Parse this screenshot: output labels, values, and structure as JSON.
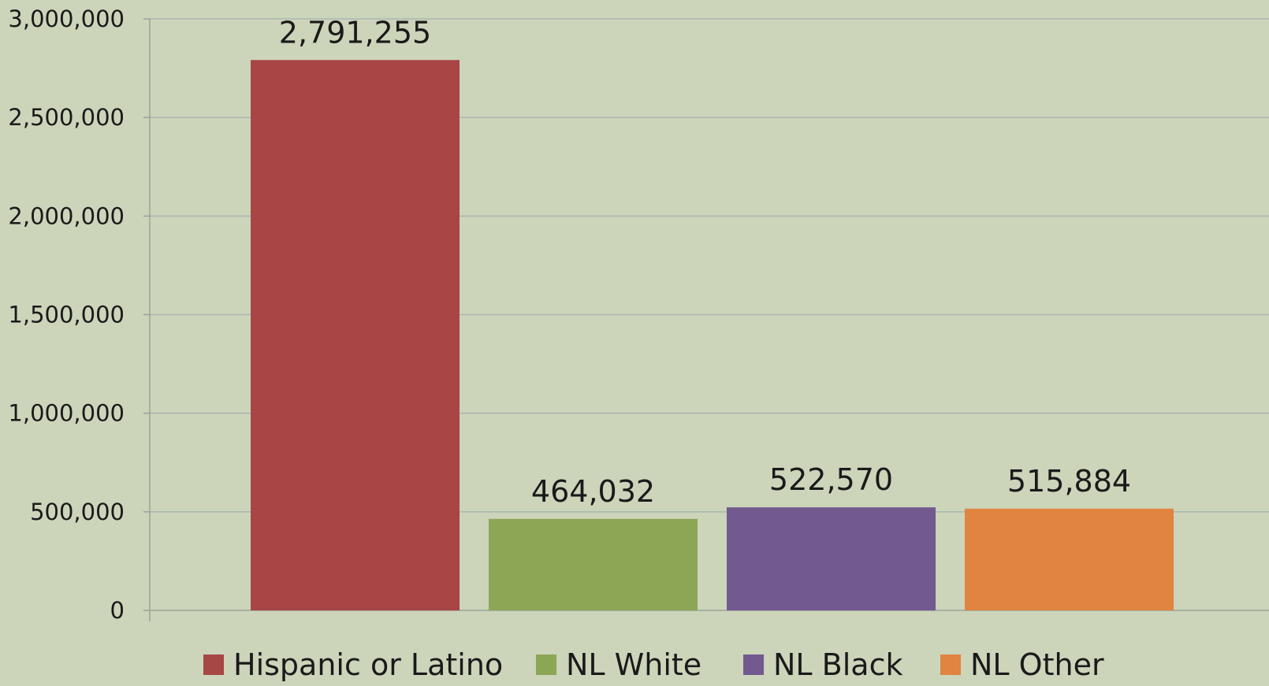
{
  "chart_data": {
    "type": "bar",
    "title": "",
    "xlabel": "",
    "ylabel": "",
    "ylim": [
      0,
      3000000
    ],
    "grid": true,
    "legend_position": "bottom",
    "yticks": [
      0,
      500000,
      1000000,
      1500000,
      2000000,
      2500000,
      3000000
    ],
    "ytick_labels": [
      "0",
      "500,000",
      "1,000,000",
      "1,500,000",
      "2,000,000",
      "2,500,000",
      "3,000,000"
    ],
    "categories": [
      "Hispanic or Latino",
      "NL White",
      "NL Black",
      "NL Other"
    ],
    "values": [
      2791255,
      464032,
      522570,
      515884
    ],
    "data_labels": [
      "2,791,255",
      "464,032",
      "522,570",
      "515,884"
    ],
    "colors": [
      "#A84545",
      "#8DA655",
      "#72598F",
      "#E0843F"
    ],
    "background_color": "#CCD4BA",
    "gridline_color": "#A9B6B2",
    "axis_color": "#9AA39A"
  }
}
